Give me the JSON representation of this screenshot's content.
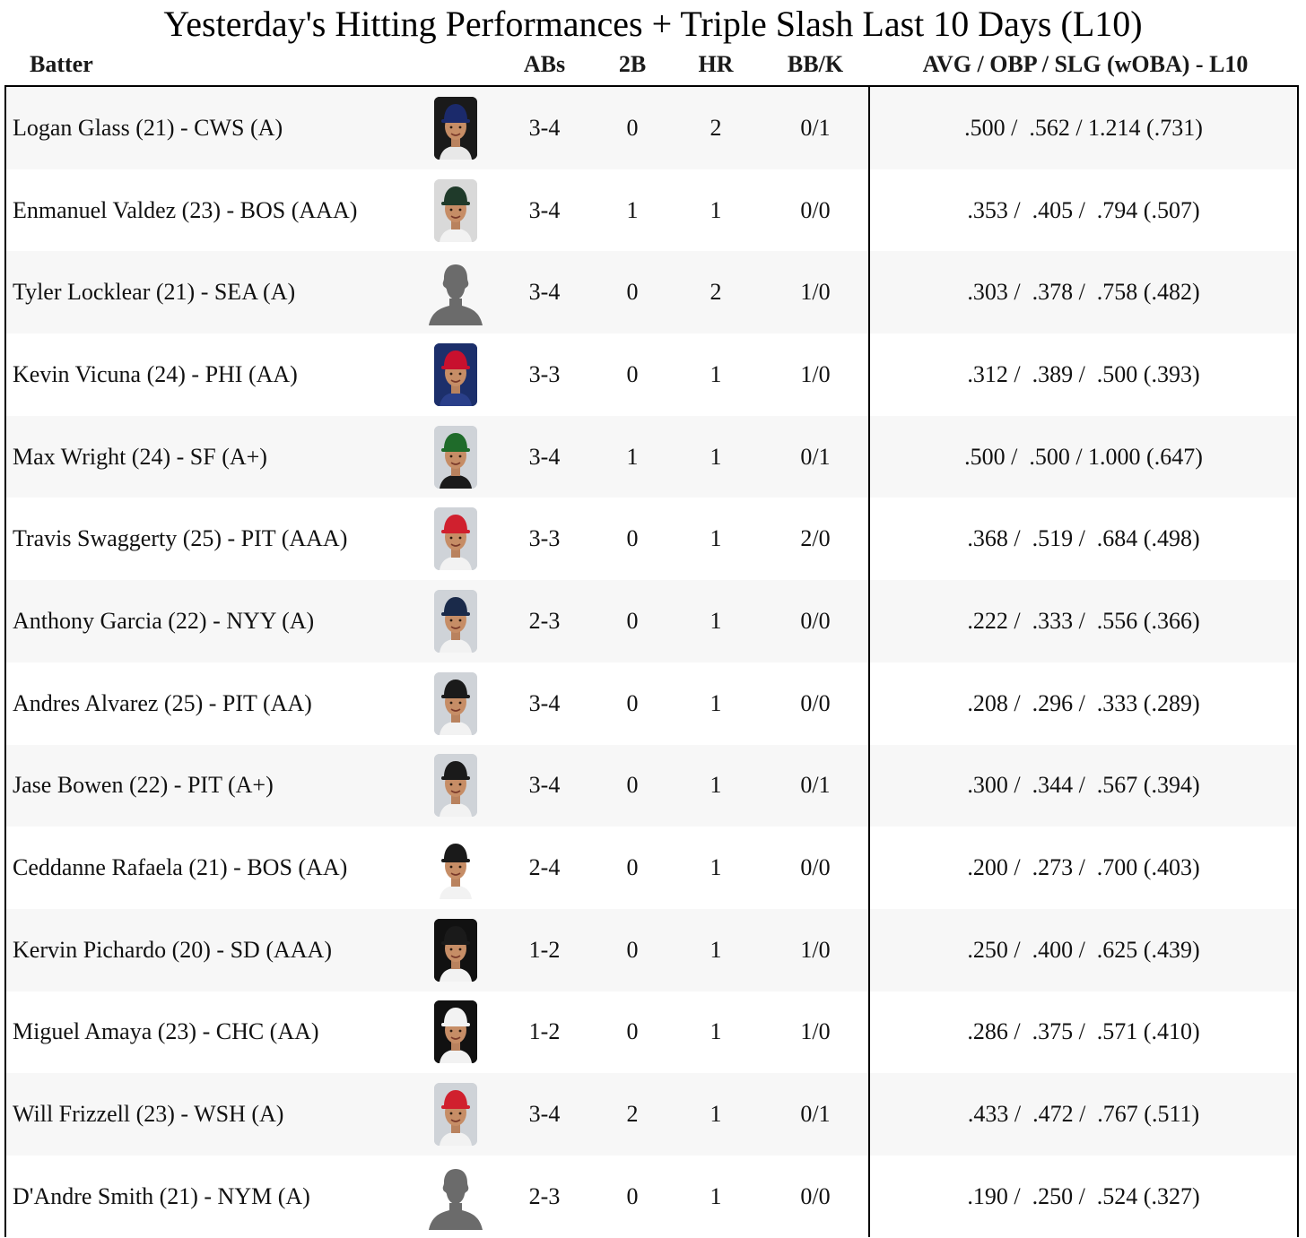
{
  "title": "Yesterday's Hitting Performances + Triple Slash Last 10 Days (L10)",
  "columns": {
    "batter": "Batter",
    "abs": "ABs",
    "doubles": "2B",
    "hr": "HR",
    "bbk": "BB/K",
    "slash": "AVG / OBP / SLG (wOBA) - L10"
  },
  "rows": [
    {
      "name": "Logan Glass (21) - CWS (A)",
      "abs": "3-4",
      "doubles": "0",
      "hr": "2",
      "bbk": "0/1",
      "slash": ".500 /  .562 / 1.214 (.731)",
      "photo": "player-headshot",
      "cap": "#1b2a6b",
      "bg": "#1a1a1a",
      "jersey": "#e8e8e8"
    },
    {
      "name": "Enmanuel Valdez (23) - BOS (AAA)",
      "abs": "3-4",
      "doubles": "1",
      "hr": "1",
      "bbk": "0/0",
      "slash": ".353 /  .405 /  .794 (.507)",
      "photo": "player-headshot",
      "cap": "#1f3a2a",
      "bg": "#d9d9d9",
      "jersey": "#f2f2f2"
    },
    {
      "name": "Tyler Locklear (21) - SEA (A)",
      "abs": "3-4",
      "doubles": "0",
      "hr": "2",
      "bbk": "1/0",
      "slash": ".303 /  .378 /  .758 (.482)",
      "photo": "silhouette",
      "cap": "",
      "bg": "",
      "jersey": ""
    },
    {
      "name": "Kevin Vicuna (24) - PHI (AA)",
      "abs": "3-3",
      "doubles": "0",
      "hr": "1",
      "bbk": "1/0",
      "slash": ".312 /  .389 /  .500 (.393)",
      "photo": "player-headshot",
      "cap": "#c8102e",
      "bg": "#1c2f6b",
      "jersey": "#2a3f8a"
    },
    {
      "name": "Max Wright (24) - SF (A+)",
      "abs": "3-4",
      "doubles": "1",
      "hr": "1",
      "bbk": "0/1",
      "slash": ".500 /  .500 / 1.000 (.647)",
      "photo": "player-headshot",
      "cap": "#1f6b2a",
      "bg": "#cfd3d8",
      "jersey": "#1a1a1a"
    },
    {
      "name": "Travis Swaggerty (25) - PIT (AAA)",
      "abs": "3-3",
      "doubles": "0",
      "hr": "1",
      "bbk": "2/0",
      "slash": ".368 /  .519 /  .684 (.498)",
      "photo": "player-headshot",
      "cap": "#d0202e",
      "bg": "#cfd3d8",
      "jersey": "#f2f2f2"
    },
    {
      "name": "Anthony Garcia (22) - NYY (A)",
      "abs": "2-3",
      "doubles": "0",
      "hr": "1",
      "bbk": "0/0",
      "slash": ".222 /  .333 /  .556 (.366)",
      "photo": "player-headshot",
      "cap": "#1a2a4a",
      "bg": "#cfd3d8",
      "jersey": "#f2f2f2"
    },
    {
      "name": "Andres Alvarez (25) - PIT (AA)",
      "abs": "3-4",
      "doubles": "0",
      "hr": "1",
      "bbk": "0/0",
      "slash": ".208 /  .296 /  .333 (.289)",
      "photo": "player-headshot",
      "cap": "#1a1a1a",
      "bg": "#cfd3d8",
      "jersey": "#f2f2f2"
    },
    {
      "name": "Jase Bowen (22) - PIT (A+)",
      "abs": "3-4",
      "doubles": "0",
      "hr": "1",
      "bbk": "0/1",
      "slash": ".300 /  .344 /  .567 (.394)",
      "photo": "player-headshot",
      "cap": "#1a1a1a",
      "bg": "#cfd3d8",
      "jersey": "#f2f2f2"
    },
    {
      "name": "Ceddanne Rafaela (21) - BOS (AA)",
      "abs": "2-4",
      "doubles": "0",
      "hr": "1",
      "bbk": "0/0",
      "slash": ".200 /  .273 /  .700 (.403)",
      "photo": "player-headshot",
      "cap": "#1a1a1a",
      "bg": "#ffffff",
      "jersey": "#f2f2f2"
    },
    {
      "name": "Kervin Pichardo (20) - SD (AAA)",
      "abs": "1-2",
      "doubles": "0",
      "hr": "1",
      "bbk": "1/0",
      "slash": ".250 /  .400 /  .625 (.439)",
      "photo": "player-headshot",
      "cap": "#1a1a1a",
      "bg": "#111111",
      "jersey": "#f2f2f2"
    },
    {
      "name": "Miguel Amaya (23) - CHC (AA)",
      "abs": "1-2",
      "doubles": "0",
      "hr": "1",
      "bbk": "1/0",
      "slash": ".286 /  .375 /  .571 (.410)",
      "photo": "player-headshot",
      "cap": "#f2f2f2",
      "bg": "#111111",
      "jersey": "#f2f2f2"
    },
    {
      "name": "Will Frizzell (23) - WSH (A)",
      "abs": "3-4",
      "doubles": "2",
      "hr": "1",
      "bbk": "0/1",
      "slash": ".433 /  .472 /  .767 (.511)",
      "photo": "player-headshot",
      "cap": "#d0202e",
      "bg": "#cfd3d8",
      "jersey": "#f2f2f2"
    },
    {
      "name": "D'Andre Smith (21) - NYM (A)",
      "abs": "2-3",
      "doubles": "0",
      "hr": "1",
      "bbk": "0/0",
      "slash": ".190 /  .250 /  .524 (.327)",
      "photo": "silhouette",
      "cap": "",
      "bg": "",
      "jersey": ""
    }
  ]
}
